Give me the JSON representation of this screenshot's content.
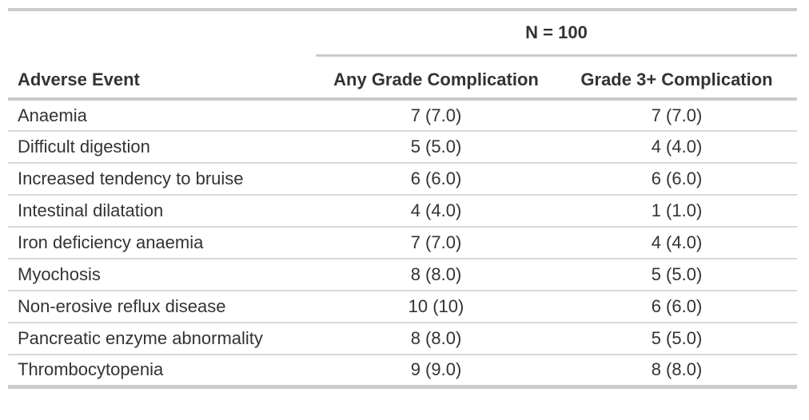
{
  "chart_data": {
    "type": "table",
    "spanner": "N = 100",
    "columns": [
      "Adverse Event",
      "Any Grade Complication",
      "Grade 3+ Complication"
    ],
    "rows": [
      [
        "Anaemia",
        "7 (7.0)",
        "7 (7.0)"
      ],
      [
        "Difficult digestion",
        "5 (5.0)",
        "4 (4.0)"
      ],
      [
        "Increased tendency to bruise",
        "6 (6.0)",
        "6 (6.0)"
      ],
      [
        "Intestinal dilatation",
        "4 (4.0)",
        "1 (1.0)"
      ],
      [
        "Iron deficiency anaemia",
        "7 (7.0)",
        "4 (4.0)"
      ],
      [
        "Myochosis",
        "8 (8.0)",
        "5 (5.0)"
      ],
      [
        "Non-erosive reflux disease",
        "10 (10)",
        "6 (6.0)"
      ],
      [
        "Pancreatic enzyme abnormality",
        "8 (8.0)",
        "5 (5.0)"
      ],
      [
        "Thrombocytopenia",
        "9 (9.0)",
        "8 (8.0)"
      ]
    ],
    "layout": {
      "value_alignment": "center",
      "event_alignment": "left",
      "gridlines": "horizontal-only"
    }
  },
  "colors": {
    "text": "#333333",
    "border_thick": "#cbcbcb",
    "border_thin": "#d9d9d9",
    "background": "#ffffff"
  }
}
